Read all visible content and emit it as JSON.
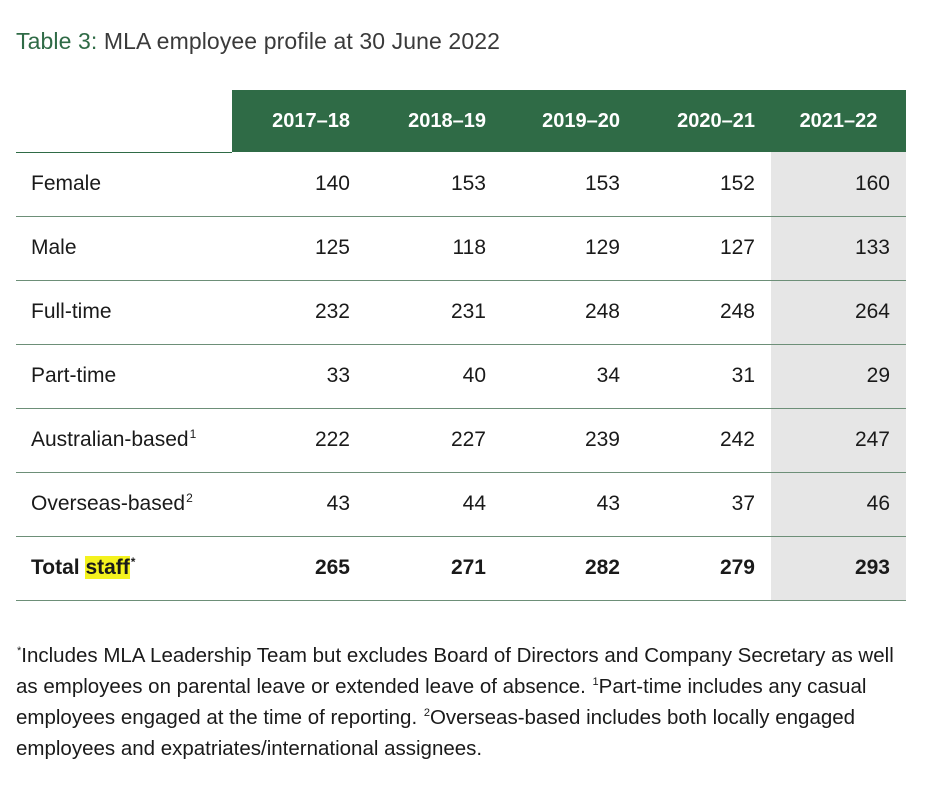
{
  "caption": {
    "label": "Table 3:",
    "title": "MLA employee profile at 30 June 2022"
  },
  "table": {
    "columns": [
      "2017–18",
      "2018–19",
      "2019–20",
      "2020–21",
      "2021–22"
    ],
    "rows": [
      {
        "label": "Female",
        "sup": "",
        "values": [
          "140",
          "153",
          "153",
          "152",
          "160"
        ]
      },
      {
        "label": "Male",
        "sup": "",
        "values": [
          "125",
          "118",
          "129",
          "127",
          "133"
        ]
      },
      {
        "label": "Full-time",
        "sup": "",
        "values": [
          "232",
          "231",
          "248",
          "248",
          "264"
        ]
      },
      {
        "label": "Part-time",
        "sup": "",
        "values": [
          "33",
          "40",
          "34",
          "31",
          "29"
        ]
      },
      {
        "label": "Australian-based",
        "sup": "1",
        "values": [
          "222",
          "227",
          "239",
          "242",
          "247"
        ]
      },
      {
        "label": "Overseas-based",
        "sup": "2",
        "values": [
          "43",
          "44",
          "43",
          "37",
          "46"
        ]
      }
    ],
    "total": {
      "label_a": "Total",
      "label_b": "staff",
      "sup": "*",
      "values": [
        "265",
        "271",
        "282",
        "279",
        "293"
      ]
    }
  },
  "footnote": {
    "mark_a": "*",
    "text_a": "Includes MLA Leadership Team but excludes Board of Directors and Company Secretary as well as employees on parental leave or extended leave of absence. ",
    "mark_b": "1",
    "text_b": "Part-time includes any casual employees engaged at the time of reporting. ",
    "mark_c": "2",
    "text_c": "Overseas-based includes both locally engaged employees and expatriates/international assignees."
  },
  "colors": {
    "header_green": "#2f6b46",
    "shaded_column": "#e6e6e6",
    "highlight": "#f4f21e"
  }
}
